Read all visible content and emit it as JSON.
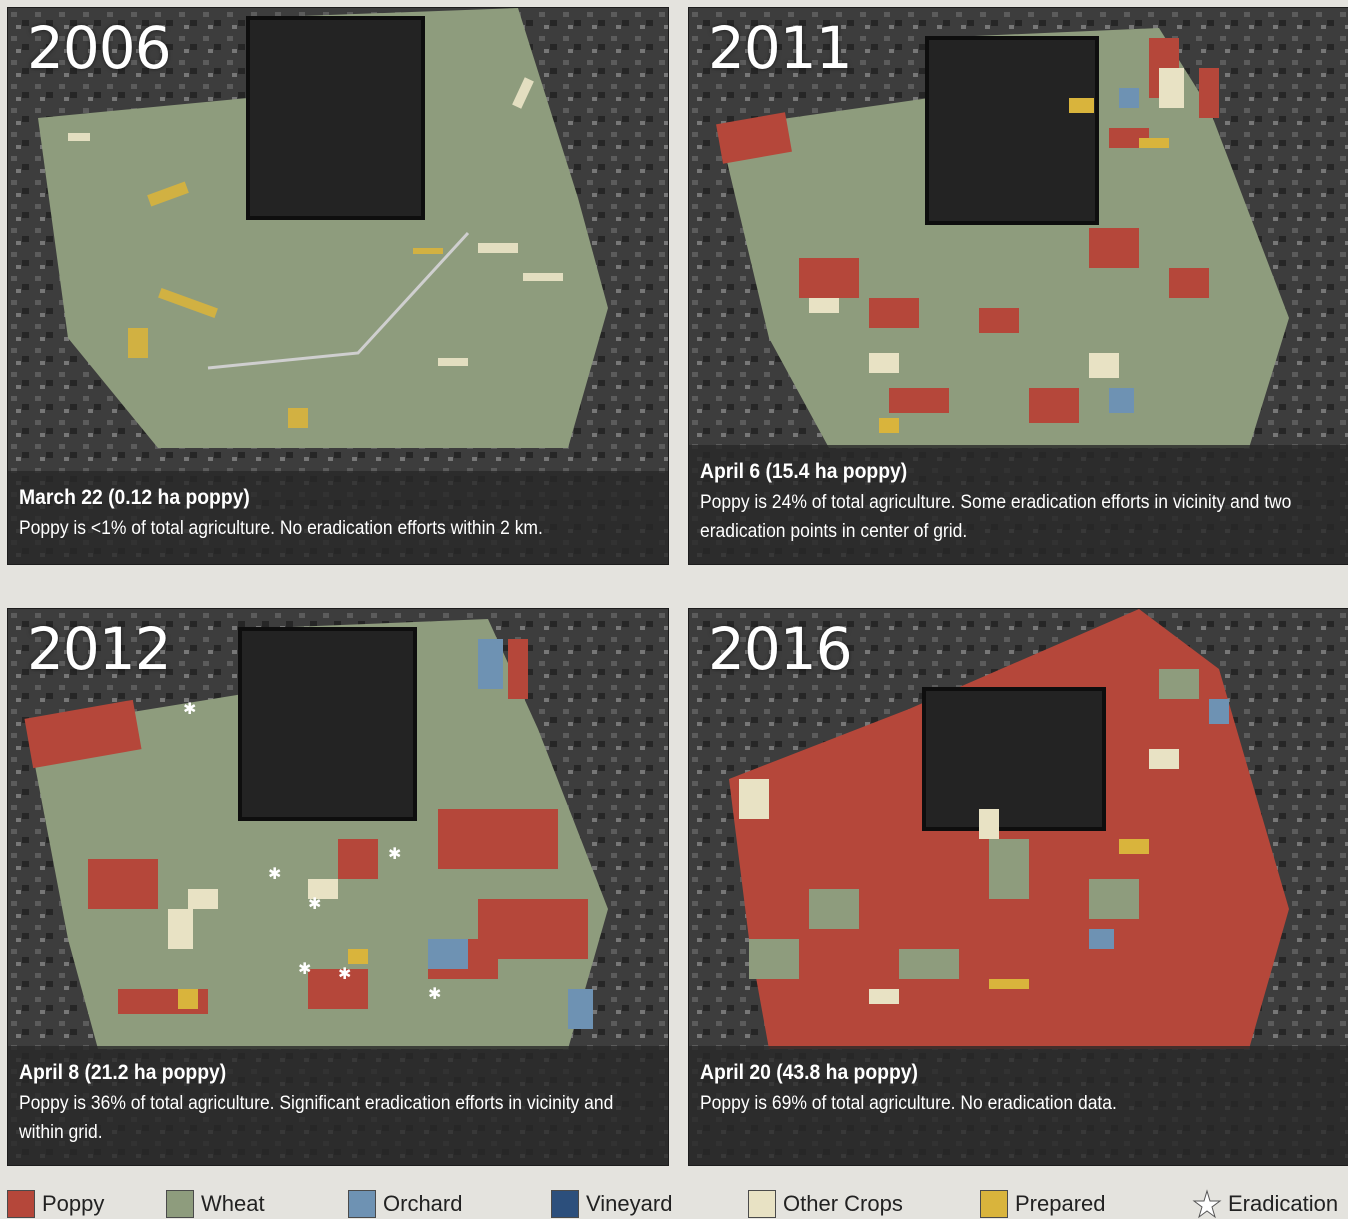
{
  "panels": [
    {
      "year": "2006",
      "title": "March 22 (0.12 ha poppy)",
      "text": "Poppy is <1% of total agriculture. No eradication efforts within 2 km."
    },
    {
      "year": "2011",
      "title": "April 6 (15.4 ha poppy)",
      "text": "Poppy is 24% of total agriculture. Some eradication efforts in vicinity and two eradication points in center of grid."
    },
    {
      "year": "2012",
      "title": "April 8 (21.2 ha poppy)",
      "text": "Poppy is 36% of total agriculture. Significant eradication efforts in vicinity and within grid."
    },
    {
      "year": "2016",
      "title": "April 20 (43.8 ha poppy)",
      "text": "Poppy is 69% of total agriculture. No eradication data."
    }
  ],
  "legend": [
    {
      "label": "Poppy",
      "color": "#b5473a"
    },
    {
      "label": "Wheat",
      "color": "#8e9c7d"
    },
    {
      "label": "Orchard",
      "color": "#6e92b3"
    },
    {
      "label": "Vineyard",
      "color": "#2c4f7c"
    },
    {
      "label": "Other Crops",
      "color": "#e8e2c4"
    },
    {
      "label": "Prepared",
      "color": "#d9b43c"
    },
    {
      "label": "Eradication",
      "icon": "star-icon"
    }
  ],
  "colors": {
    "poppy": "#b5473a",
    "wheat": "#8e9c7d",
    "orchard": "#6e92b3",
    "vineyard": "#2c4f7c",
    "other": "#e8e2c4",
    "prepared": "#d9b43c"
  }
}
